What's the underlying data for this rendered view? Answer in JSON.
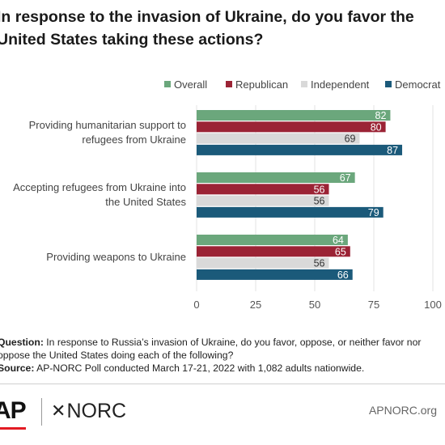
{
  "title": {
    "line1": "In response to the invasion of Ukraine, do you favor the",
    "line2": "United States taking these actions?"
  },
  "chart_data": {
    "type": "bar",
    "orientation": "horizontal",
    "categories": [
      [
        "Providing humanitarian support to",
        "refugees from Ukraine"
      ],
      [
        "Accepting refugees from Ukraine into",
        "the United States"
      ],
      [
        "Providing weapons to Ukraine"
      ]
    ],
    "series": [
      {
        "name": "Overall",
        "color": "#6ba77c",
        "values": [
          82,
          67,
          64
        ]
      },
      {
        "name": "Republican",
        "color": "#9b2335",
        "values": [
          80,
          56,
          65
        ]
      },
      {
        "name": "Independent",
        "color": "#d9d9d9",
        "values": [
          69,
          56,
          56
        ]
      },
      {
        "name": "Democrat",
        "color": "#1b5a7a",
        "values": [
          87,
          79,
          66
        ]
      }
    ],
    "xlim": [
      0,
      100
    ],
    "xticks": [
      "0",
      "25",
      "50",
      "75",
      "100"
    ],
    "grid": true,
    "legend_position": "top-right",
    "data_labels": true
  },
  "notes": {
    "question_label": "Question:",
    "question_line1": "In response to Russia’s invasion of Ukraine, do you favor, oppose, or neither favor nor",
    "question_line2": "oppose the United States doing each of the following?",
    "source_label": "Source:",
    "source_text": "AP-NORC Poll conducted March 17-21, 2022 with 1,082 adults nationwide."
  },
  "footer": {
    "ap_logo": "AP",
    "norc_logo": "NORC",
    "url": "APNORC.org"
  }
}
